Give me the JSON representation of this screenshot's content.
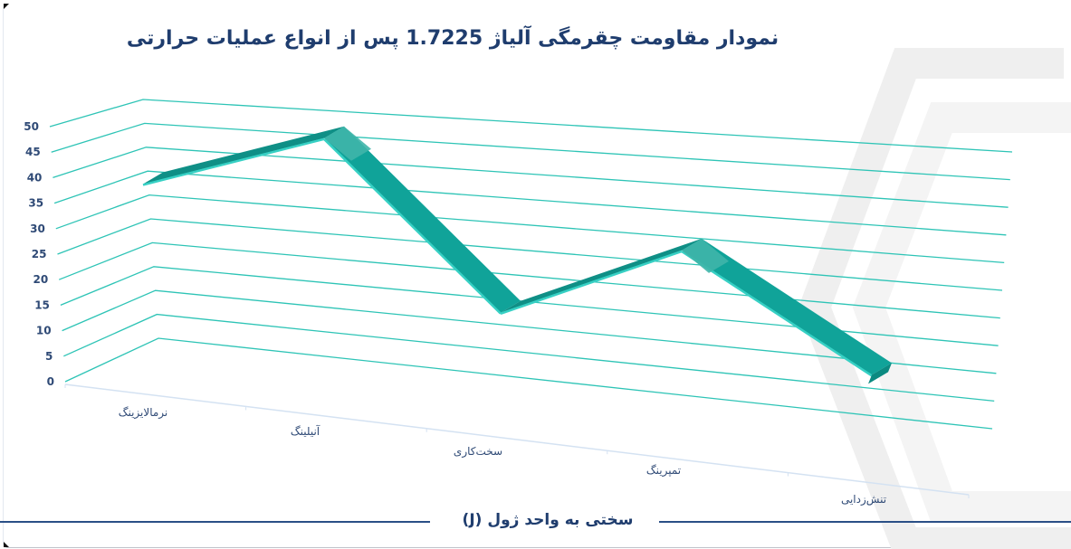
{
  "title": "نمودار مقاومت چقرمگی آلیاژ 1.7225 پس از انواع عملیات حرارتی",
  "footer": {
    "unit_label": "سختی به واحد ژول (J)"
  },
  "colors": {
    "grid": "#2ec4b6",
    "ribbon_top": "#0f8f86",
    "ribbon_face": "#10a399",
    "ribbon_light": "#3fb5aa",
    "text": "#2f4a76",
    "title": "#1f3d6e",
    "axis_floor": "#d4e2f2",
    "footer_line": "#2a4f86",
    "watermark": "#eeeeee"
  },
  "chart_data": {
    "type": "line",
    "style": "3d-ribbon",
    "title": "نمودار مقاومت چقرمگی آلیاژ 1.7225 پس از انواع عملیات حرارتی",
    "xlabel": "",
    "ylabel": "سختی به واحد ژول (J)",
    "categories": [
      "نرمالایزینگ",
      "آنیلینگ",
      "سخت‌کاری",
      "تمپرینگ",
      "تنش‌زدایی"
    ],
    "values": [
      35,
      47,
      15,
      30,
      10
    ],
    "y_ticks": [
      "0",
      "5",
      "10",
      "15",
      "20",
      "25",
      "30",
      "35",
      "40",
      "45",
      "50"
    ],
    "ylim": [
      0,
      50
    ],
    "grid": true,
    "legend": "none"
  }
}
